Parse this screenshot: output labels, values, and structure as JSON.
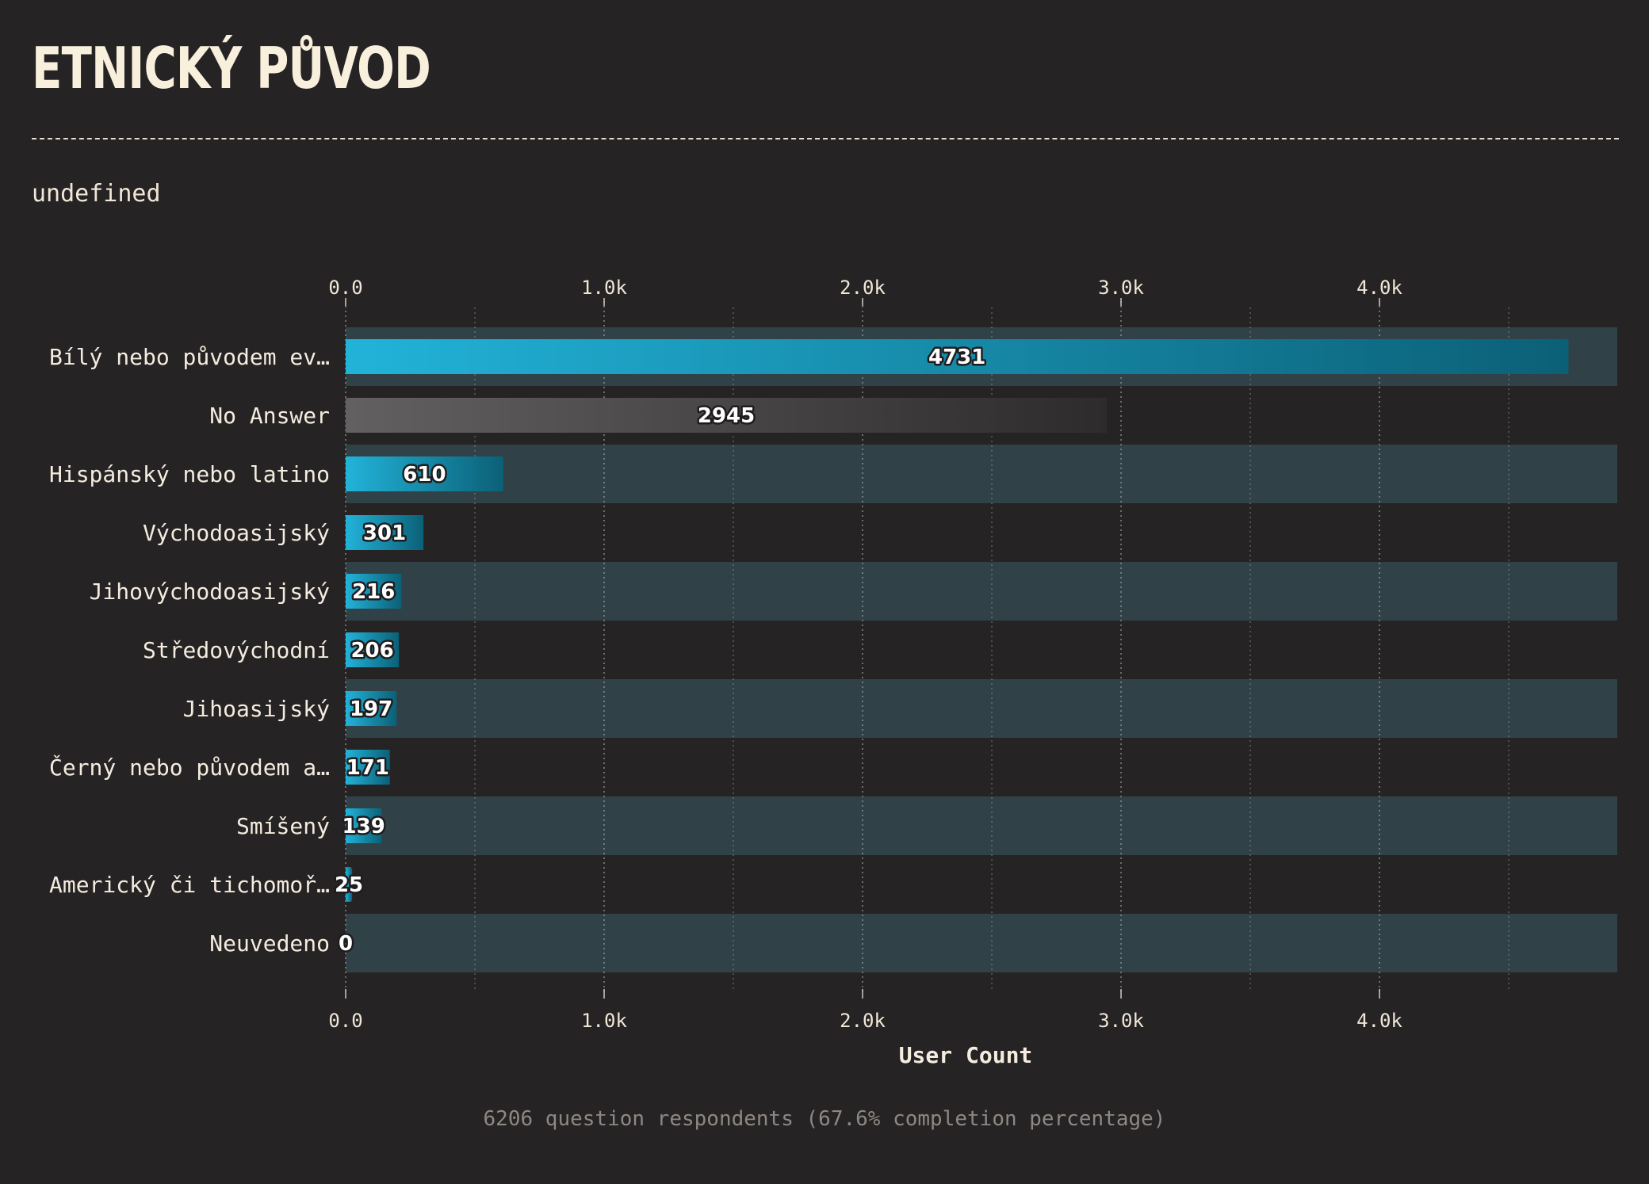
{
  "header": {
    "title": "ETNICKÝ PŮVOD",
    "subtitle": "undefined"
  },
  "footer": {
    "note": "6206 question respondents (67.6% completion percentage)"
  },
  "colors": {
    "background": "#262324",
    "band": "#304247",
    "bar_start": "#22b3d9",
    "bar_end": "#0b6077",
    "no_answer_start": "#626060",
    "no_answer_end": "#2e2b2c",
    "text": "#f4ecdf"
  },
  "chart_data": {
    "type": "bar",
    "orientation": "horizontal",
    "categories": [
      "Bílý nebo původem ev…",
      "No Answer",
      "Hispánský nebo latino",
      "Východoasijský",
      "Jihovýchodoasijský",
      "Středovýchodní",
      "Jihoasijský",
      "Černý nebo původem a…",
      "Smíšený",
      "Americký či tichomoř…",
      "Neuvedeno"
    ],
    "values": [
      4731,
      2945,
      610,
      301,
      216,
      206,
      197,
      171,
      139,
      25,
      0
    ],
    "xlabel": "User Count",
    "xlim": [
      0,
      4920
    ],
    "xticks": [
      0,
      1000,
      2000,
      3000,
      4000
    ],
    "xtick_labels": [
      "0.0",
      "1.0k",
      "2.0k",
      "3.0k",
      "4.0k"
    ],
    "minor_gridlines": [
      500,
      1500,
      2500,
      3500,
      4500
    ],
    "grid": "vertical dotted",
    "axis_labels_top_and_bottom": true,
    "highlight_category": "No Answer"
  }
}
